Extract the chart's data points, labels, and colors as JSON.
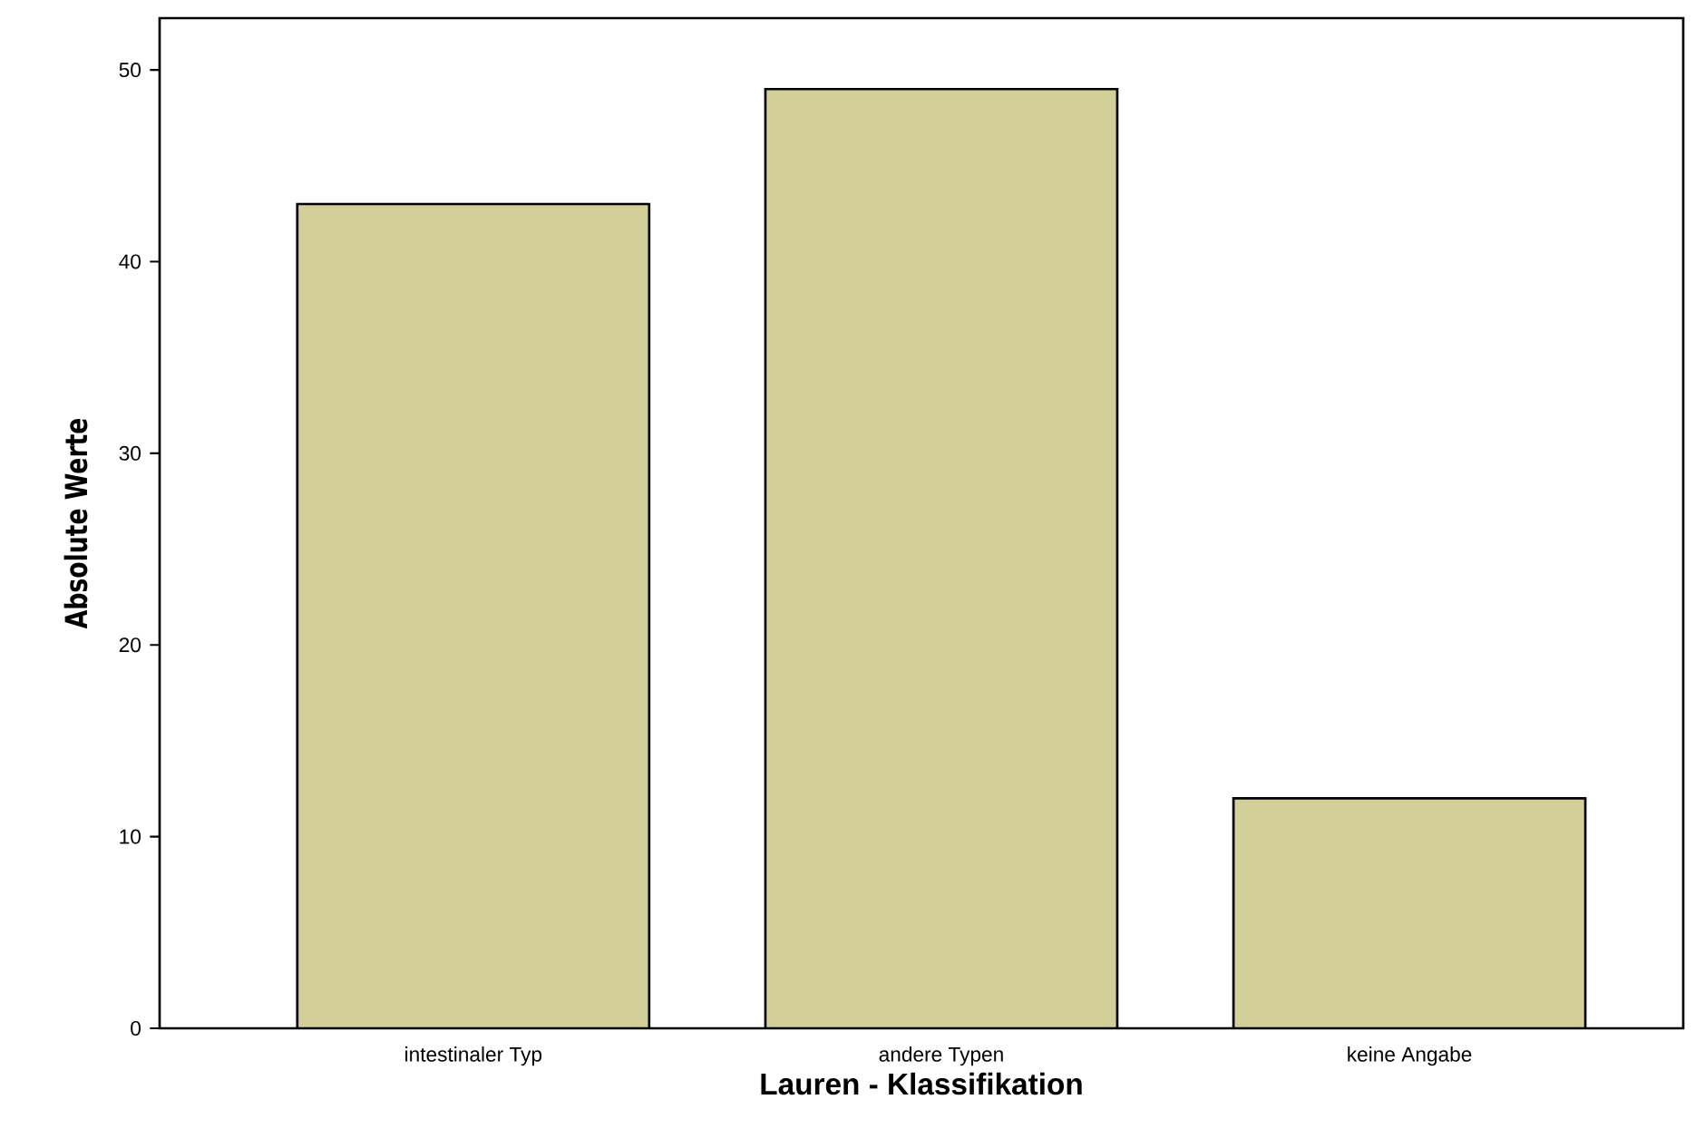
{
  "chart_data": {
    "type": "bar",
    "xlabel": "Lauren - Klassifikation",
    "ylabel": "Absolute Werte",
    "categories": [
      "intestinaler Typ",
      "andere Typen",
      "keine Angabe"
    ],
    "values": [
      43,
      49,
      12
    ],
    "color": "#d2cf98",
    "ylim": [
      0,
      52.7
    ],
    "yticks": [
      0,
      10,
      20,
      30,
      40,
      50
    ],
    "grid": false
  }
}
